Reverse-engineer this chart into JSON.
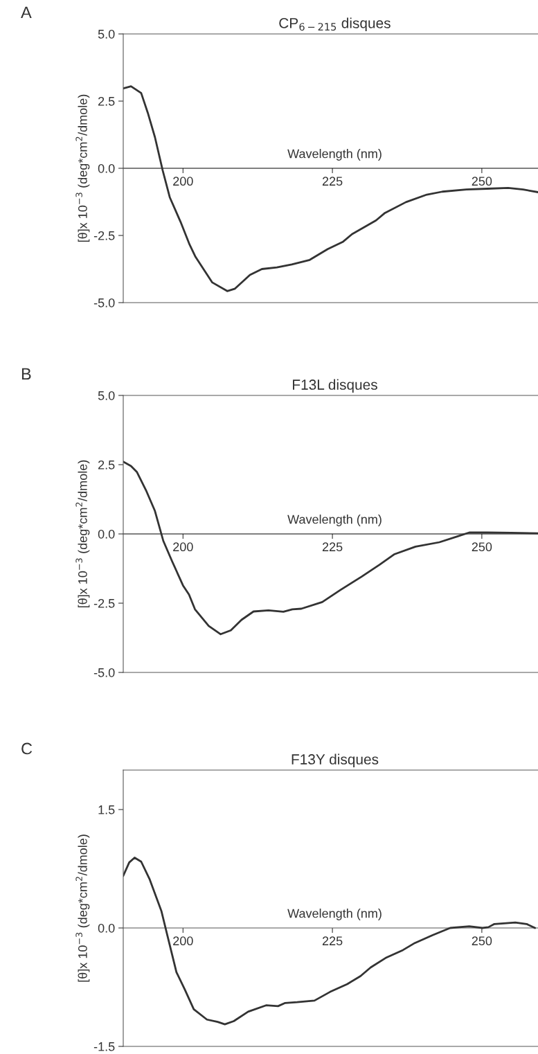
{
  "chart_data": [
    {
      "type": "line",
      "title": "CP$_{6−215}$ disques",
      "xlabel": "Wavelength (nm)",
      "ylabel": "[θ]x 10$^{−3}$ (deg*cm$^{2}$/dmole)",
      "annotations": [
        "A"
      ],
      "xlim": [
        190,
        259.4
      ],
      "xticks": [
        200,
        225,
        250
      ],
      "ylim": [
        -5.0,
        5.0
      ],
      "yticks": [
        {
          "value": 5.0,
          "label": "5.0"
        },
        {
          "value": 2.5,
          "label": "2.5"
        },
        {
          "value": 0.0,
          "label": "0.0"
        },
        {
          "value": -2.5,
          "label": "-2.5"
        },
        {
          "value": -5.0,
          "label": "-5.0"
        }
      ],
      "series": [
        {
          "color": "#333333",
          "x": [
            190,
            191.3,
            193,
            194.1,
            195.3,
            196.6,
            197.8,
            199.6,
            201.1,
            202.1,
            204.9,
            207.4,
            208.7,
            211.2,
            213.2,
            215.7,
            218.2,
            221.2,
            224.2,
            226.8,
            228.3,
            232.3,
            233.8,
            237.3,
            240.8,
            243.4,
            247.4,
            250.9,
            254.4,
            256.9,
            259.4
          ],
          "values": [
            2.97,
            3.05,
            2.8,
            2.07,
            1.16,
            -0.08,
            -1.09,
            -2.0,
            -2.84,
            -3.3,
            -4.25,
            -4.57,
            -4.48,
            -3.97,
            -3.75,
            -3.69,
            -3.58,
            -3.41,
            -3.01,
            -2.73,
            -2.45,
            -1.94,
            -1.66,
            -1.26,
            -0.98,
            -0.87,
            -0.79,
            -0.76,
            -0.73,
            -0.79,
            -0.89
          ]
        }
      ]
    },
    {
      "type": "line",
      "title": "F13L disques",
      "xlabel": "Wavelength (nm)",
      "ylabel": "[θ]x 10$^{−3}$ (deg*cm$^{2}$/dmole)",
      "annotations": [
        "B"
      ],
      "xlim": [
        190,
        259.4
      ],
      "xticks": [
        200,
        225,
        250
      ],
      "ylim": [
        -5.0,
        5.0
      ],
      "yticks": [
        {
          "value": 5.0,
          "label": "5.0"
        },
        {
          "value": 2.5,
          "label": "2.5"
        },
        {
          "value": 0.0,
          "label": "0.0"
        },
        {
          "value": -2.5,
          "label": "-2.5"
        },
        {
          "value": -5.0,
          "label": "-5.0"
        }
      ],
      "series": [
        {
          "color": "#333333",
          "x": [
            190,
            191.3,
            192.3,
            193.8,
            195.3,
            196.7,
            198.2,
            200,
            201,
            202,
            204.3,
            206.3,
            208,
            209.8,
            211.8,
            214.3,
            216.8,
            218.3,
            219.8,
            223.3,
            226.3,
            229.9,
            232.9,
            235.4,
            238.9,
            242.9,
            245.9,
            247.9,
            250.9,
            254.9,
            259.4
          ],
          "values": [
            2.61,
            2.45,
            2.23,
            1.58,
            0.83,
            -0.25,
            -1.0,
            -1.86,
            -2.19,
            -2.72,
            -3.32,
            -3.62,
            -3.48,
            -3.1,
            -2.8,
            -2.76,
            -2.81,
            -2.72,
            -2.7,
            -2.46,
            -2.03,
            -1.54,
            -1.11,
            -0.73,
            -0.46,
            -0.3,
            -0.09,
            0.05,
            0.05,
            0.04,
            0.02
          ]
        }
      ]
    },
    {
      "type": "line",
      "title": "F13Y disques",
      "xlabel": "Wavelength (nm)",
      "ylabel": "[θ]x 10$^{−3}$ (deg*cm$^{2}$/dmole)",
      "annotations": [
        "C"
      ],
      "xlim": [
        190,
        259.4
      ],
      "xticks": [
        200,
        225,
        250
      ],
      "ylim": [
        -1.5,
        2.0
      ],
      "yticks": [
        {
          "value": 1.5,
          "label": "1.5"
        },
        {
          "value": 0.0,
          "label": "0.0"
        },
        {
          "value": -1.5,
          "label": "-1.5"
        }
      ],
      "series": [
        {
          "color": "#333333",
          "x": [
            190,
            191,
            191.9,
            193,
            194.4,
            196.4,
            197.4,
            198.9,
            200.3,
            201.8,
            204,
            205.8,
            207,
            208.5,
            210.9,
            213.9,
            215.9,
            217.1,
            219.1,
            222,
            224.6,
            227.5,
            229.7,
            231.4,
            233.9,
            236.8,
            238.8,
            241.8,
            244.7,
            247.9,
            250.1,
            251.1,
            252.1,
            255.6,
            257.5,
            258.9
          ],
          "values": [
            0.66,
            0.83,
            0.89,
            0.84,
            0.62,
            0.21,
            -0.1,
            -0.56,
            -0.78,
            -1.03,
            -1.16,
            -1.19,
            -1.22,
            -1.18,
            -1.06,
            -0.98,
            -0.99,
            -0.95,
            -0.94,
            -0.92,
            -0.81,
            -0.71,
            -0.61,
            -0.5,
            -0.38,
            -0.28,
            -0.19,
            -0.09,
            0.0,
            0.02,
            0.0,
            0.01,
            0.05,
            0.07,
            0.05,
            0.0
          ]
        }
      ]
    }
  ]
}
